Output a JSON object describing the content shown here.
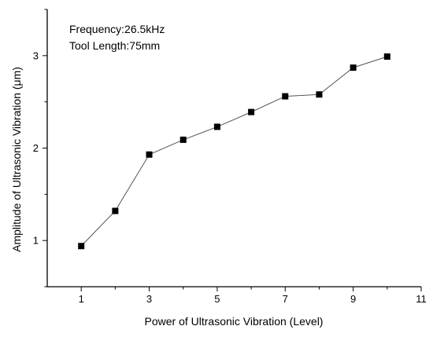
{
  "chart_data": {
    "type": "line",
    "x": [
      1,
      2,
      3,
      4,
      5,
      6,
      7,
      8,
      9,
      10
    ],
    "series": [
      {
        "values": [
          0.94,
          1.32,
          1.93,
          2.09,
          2.23,
          2.39,
          2.56,
          2.58,
          2.87,
          2.99
        ]
      }
    ],
    "xlabel": "Power of Ultrasonic Vibration (Level)",
    "ylabel": "Amplitude of Ultrasonic Vibration (μm)",
    "xlim": [
      0,
      11
    ],
    "ylim": [
      0.5,
      3.5
    ],
    "xticks": [
      "1",
      "3",
      "5",
      "7",
      "9",
      "11"
    ],
    "yticks": [
      "1",
      "2",
      "3"
    ],
    "annotations": [
      "Frequency:26.5kHz",
      "Tool Length:75mm"
    ],
    "grid": false,
    "colors": {
      "line": "#555555",
      "marker": "#000000"
    }
  }
}
